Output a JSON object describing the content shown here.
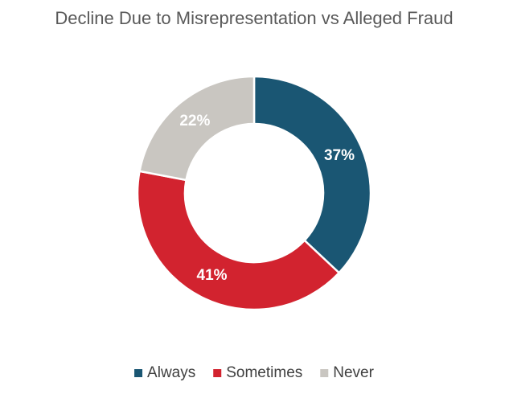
{
  "chart_data": {
    "type": "donut",
    "title": "Decline Due to Misrepresentation vs Alleged Fraud",
    "categories": [
      "Always",
      "Sometimes",
      "Never"
    ],
    "values": [
      37,
      41,
      22
    ],
    "value_labels": [
      "37%",
      "41%",
      "22%"
    ],
    "colors": [
      "#1a5673",
      "#d2232f",
      "#c9c6c1"
    ],
    "legend": "bottom"
  }
}
